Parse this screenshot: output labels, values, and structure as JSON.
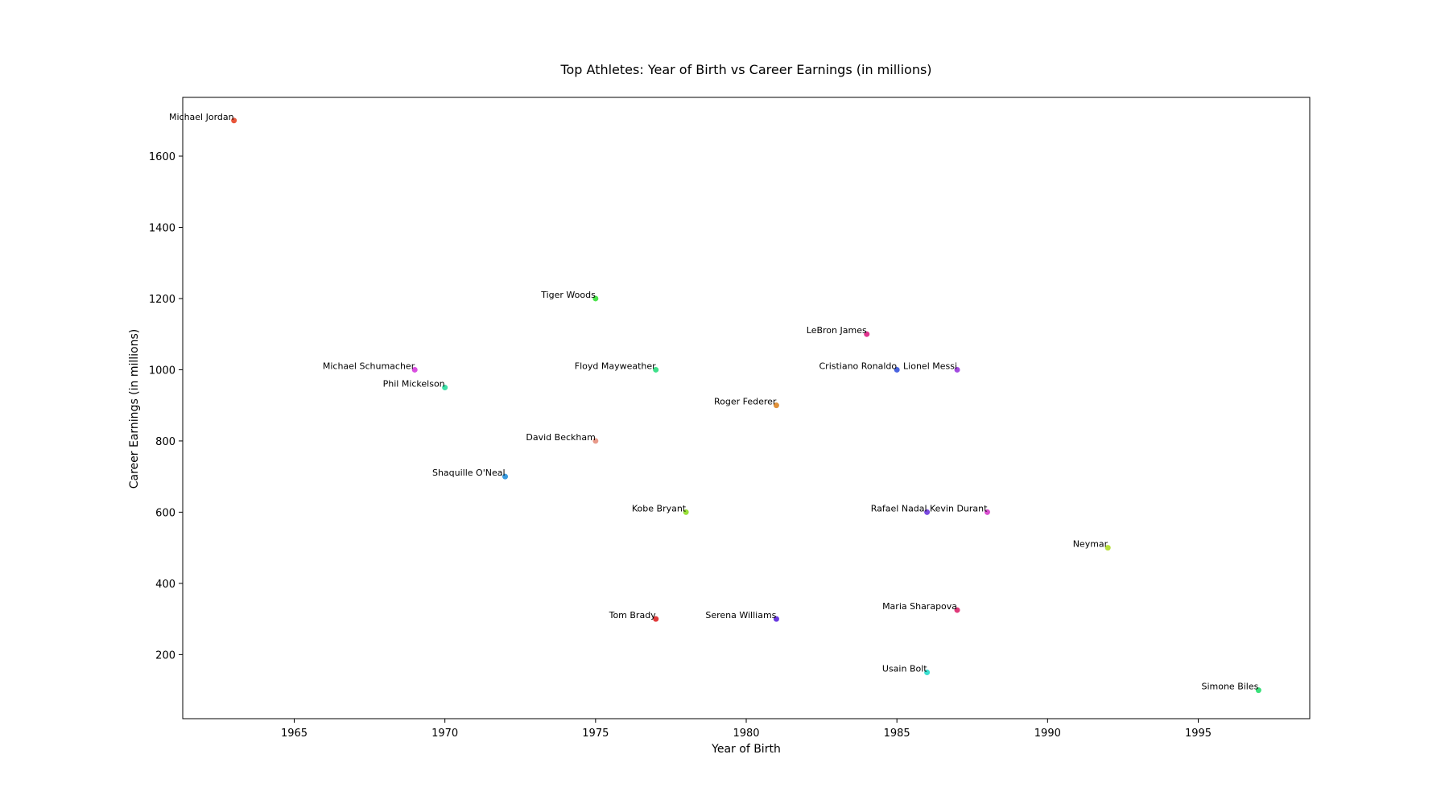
{
  "chart_data": {
    "type": "scatter",
    "title": "Top Athletes: Year of Birth vs Career Earnings (in millions)",
    "xlabel": "Year of Birth",
    "ylabel": "Career Earnings (in millions)",
    "xlim": [
      1961.3,
      1998.7
    ],
    "ylim": [
      20,
      1765
    ],
    "xticks": [
      1965,
      1970,
      1975,
      1980,
      1985,
      1990,
      1995
    ],
    "yticks": [
      200,
      400,
      600,
      800,
      1000,
      1200,
      1400,
      1600
    ],
    "grid": false,
    "legend": false,
    "points": [
      {
        "label": "Michael Jordan",
        "x": 1963,
        "y": 1700,
        "color": "#e8553a"
      },
      {
        "label": "Tiger Woods",
        "x": 1975,
        "y": 1200,
        "color": "#4be34b"
      },
      {
        "label": "LeBron James",
        "x": 1984,
        "y": 1100,
        "color": "#e0358f"
      },
      {
        "label": "Michael Schumacher",
        "x": 1969,
        "y": 1000,
        "color": "#d94fe0"
      },
      {
        "label": "Floyd Mayweather",
        "x": 1977,
        "y": 1000,
        "color": "#3fe08a"
      },
      {
        "label": "Cristiano Ronaldo",
        "x": 1985,
        "y": 1000,
        "color": "#4a63e0"
      },
      {
        "label": "Lionel Messi",
        "x": 1987,
        "y": 1000,
        "color": "#a24ae0"
      },
      {
        "label": "Phil Mickelson",
        "x": 1970,
        "y": 950,
        "color": "#3fe0a8"
      },
      {
        "label": "Roger Federer",
        "x": 1981,
        "y": 900,
        "color": "#e0913a"
      },
      {
        "label": "David Beckham",
        "x": 1975,
        "y": 800,
        "color": "#e89a8a"
      },
      {
        "label": "Shaquille O'Neal",
        "x": 1972,
        "y": 700,
        "color": "#3a9be0"
      },
      {
        "label": "Kobe Bryant",
        "x": 1978,
        "y": 600,
        "color": "#9ae03a"
      },
      {
        "label": "Rafael Nadal",
        "x": 1986,
        "y": 600,
        "color": "#7a4ae0"
      },
      {
        "label": "Kevin Durant",
        "x": 1988,
        "y": 600,
        "color": "#d94fd0"
      },
      {
        "label": "Neymar",
        "x": 1992,
        "y": 500,
        "color": "#b8e03a"
      },
      {
        "label": "Maria Sharapova",
        "x": 1987,
        "y": 325,
        "color": "#e03a7a"
      },
      {
        "label": "Tom Brady",
        "x": 1977,
        "y": 300,
        "color": "#e03a3a"
      },
      {
        "label": "Serena Williams",
        "x": 1981,
        "y": 300,
        "color": "#6a3ae0"
      },
      {
        "label": "Usain Bolt",
        "x": 1986,
        "y": 150,
        "color": "#3ae0d0"
      },
      {
        "label": "Simone Biles",
        "x": 1997,
        "y": 100,
        "color": "#3ae07a"
      }
    ]
  }
}
